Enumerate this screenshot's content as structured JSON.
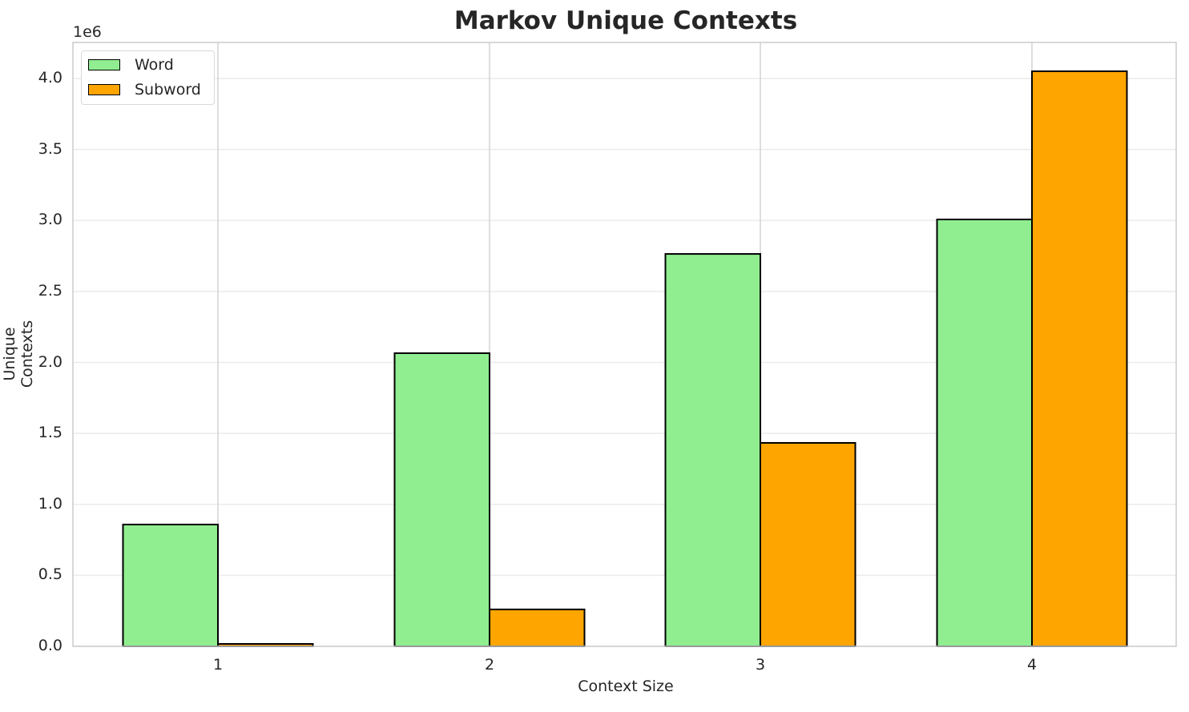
{
  "chart_data": {
    "type": "bar",
    "title": "Markov Unique Contexts",
    "xlabel": "Context Size",
    "ylabel": "Unique Contexts",
    "y_scale_label": "1e6",
    "categories": [
      "1",
      "2",
      "3",
      "4"
    ],
    "series": [
      {
        "name": "Word",
        "color": "#90EE90",
        "values": [
          858000,
          2065000,
          2764000,
          3007000
        ]
      },
      {
        "name": "Subword",
        "color": "#FFA500",
        "values": [
          17000,
          260000,
          1433000,
          4051000
        ]
      }
    ],
    "ylim": [
      0,
      4250000
    ],
    "yticks": [
      0,
      500000,
      1000000,
      1500000,
      2000000,
      2500000,
      3000000,
      3500000,
      4000000
    ],
    "ytick_labels": [
      "0.0",
      "0.5",
      "1.0",
      "1.5",
      "2.0",
      "2.5",
      "3.0",
      "3.5",
      "4.0"
    ],
    "grid": true,
    "legend_position": "upper left"
  }
}
